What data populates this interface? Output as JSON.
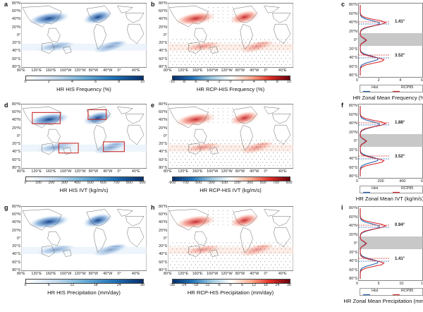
{
  "figure": {
    "panels": [
      {
        "letter": "a",
        "title": "HR HIS Frequency (%)",
        "kind": "his",
        "cmap": "blue",
        "ticks": [
          "0",
          "2",
          "4",
          "6",
          "8",
          "10"
        ]
      },
      {
        "letter": "b",
        "title": "HR RCP-HIS Frequency (%)",
        "kind": "diff",
        "cmap": "red",
        "ticks": [
          "-10",
          "-8",
          "-6",
          "-4",
          "-2",
          "0",
          "2",
          "4",
          "6",
          "8",
          "10"
        ]
      },
      {
        "letter": "c",
        "title": "HR Zonal Mean Frequency (%)",
        "kind": "zonal",
        "xticks": [
          "0",
          "2",
          "4",
          "6"
        ],
        "legend": [
          "Hist",
          "RCP85"
        ],
        "annot": [
          "1.41°",
          "3.52°"
        ]
      },
      {
        "letter": "d",
        "title": "HR HIS IVT (kg/m/s)",
        "kind": "his",
        "cmap": "blue",
        "boxes": true,
        "ticks": [
          "0",
          "100",
          "200",
          "300",
          "400",
          "500",
          "600",
          "700",
          "800",
          "900"
        ]
      },
      {
        "letter": "e",
        "title": "HR RCP-HIS IVT (kg/m/s)",
        "kind": "diff",
        "cmap": "red",
        "ticks": [
          "-900",
          "-700",
          "-500",
          "-300",
          "-100",
          "100",
          "300",
          "500",
          "700",
          "900"
        ]
      },
      {
        "letter": "f",
        "title": "HR Zonal Mean IVT (kg/m/s)",
        "kind": "zonal",
        "xticks": [
          "0",
          "200",
          "400",
          "600"
        ],
        "legend": [
          "Hist",
          "RCP85"
        ],
        "annot": [
          "1.88°",
          "3.52°"
        ]
      },
      {
        "letter": "g",
        "title": "HR HIS Precipitation (mm/day)",
        "kind": "his",
        "cmap": "blue",
        "ticks": [
          "0",
          "6",
          "12",
          "18",
          "24",
          "30"
        ]
      },
      {
        "letter": "h",
        "title": "HR RCP-HIS Precipitation (mm/day)",
        "kind": "diff",
        "cmap": "red",
        "ticks": [
          "-30",
          "-24",
          "-18",
          "-12",
          "-6",
          "0",
          "6",
          "12",
          "18",
          "24",
          "30"
        ]
      },
      {
        "letter": "i",
        "title": "HR Zonal Mean Precipitation (mm/day)",
        "kind": "zonal",
        "xticks": [
          "0",
          "5",
          "10",
          "15"
        ],
        "legend": [
          "Hist",
          "RCP85"
        ],
        "annot": [
          "0.94°",
          "1.41°"
        ]
      }
    ],
    "lat_labels": [
      "80°N",
      "60°N",
      "40°N",
      "20°N",
      "0°",
      "20°S",
      "40°S",
      "60°S",
      "80°S"
    ],
    "lon_labels": [
      "80°E",
      "120°E",
      "160°E",
      "160°W",
      "120°W",
      "80°W",
      "40°W",
      "0°",
      "40°E"
    ],
    "colors": {
      "hist": "#1f5fae",
      "rcp": "#d62728",
      "blue_dark": "#08306b",
      "red_dark": "#a50f15",
      "box": "#c62828"
    }
  }
}
